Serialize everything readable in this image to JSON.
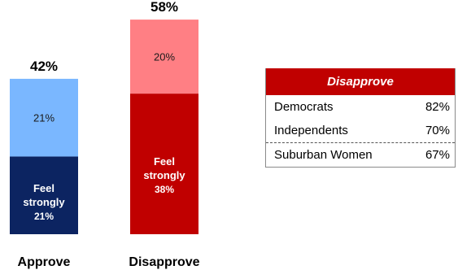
{
  "chart_data": {
    "type": "bar",
    "stacked": true,
    "categories": [
      "Approve",
      "Disapprove"
    ],
    "totals": [
      42,
      58
    ],
    "total_labels": [
      "42%",
      "58%"
    ],
    "segments": [
      {
        "category": "Approve",
        "parts": [
          {
            "value": 21,
            "label_lines": [
              "Feel",
              "strongly",
              "21%"
            ],
            "color": "#0c2461",
            "text_color": "#ffffff"
          },
          {
            "value": 21,
            "label_lines": [
              "21%"
            ],
            "color": "#7ab7ff",
            "text_color": "#1a1a1a"
          }
        ]
      },
      {
        "category": "Disapprove",
        "parts": [
          {
            "value": 38,
            "label_lines": [
              "Feel",
              "strongly",
              "38%"
            ],
            "color": "#c00000",
            "text_color": "#ffffff"
          },
          {
            "value": 20,
            "label_lines": [
              "20%"
            ],
            "color": "#ff7f84",
            "text_color": "#1a1a1a"
          }
        ]
      }
    ],
    "ylim": [
      0,
      58
    ],
    "grid": false,
    "legend": "none"
  },
  "table": {
    "title": "Disapprove",
    "rows": [
      {
        "label": "Democrats",
        "value": "82%"
      },
      {
        "label": "Independents",
        "value": "70%"
      },
      {
        "label": "Suburban Women",
        "value": "67%"
      }
    ]
  },
  "colors": {
    "approve_strong": "#0c2461",
    "approve_light": "#7ab7ff",
    "disapprove_strong": "#c00000",
    "disapprove_light": "#ff7f84",
    "table_header": "#c00000"
  }
}
